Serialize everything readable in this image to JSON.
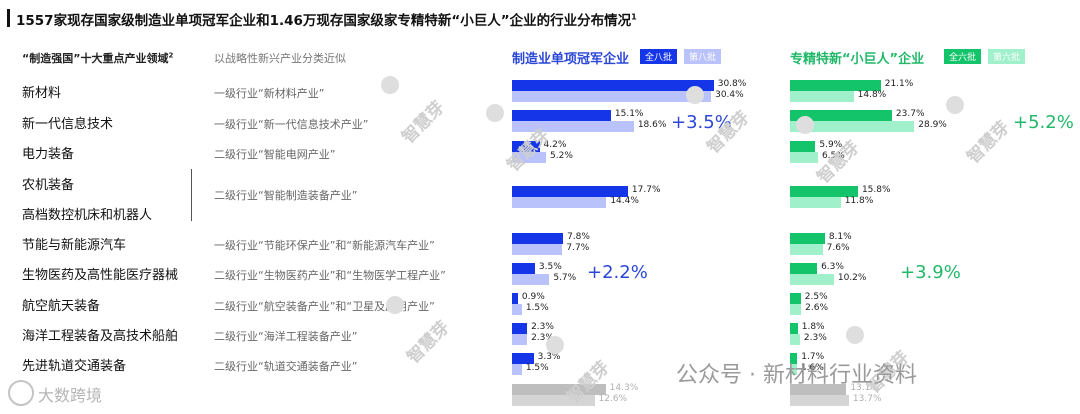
{
  "title": "1557家现存国家级制造业单项冠军企业和1.46万现存国家级家专精特新“小巨人”企业的行业分布情况",
  "title_sup": "1",
  "headers": {
    "left": "“制造强国”十大重点产业领域",
    "left_sup": "2",
    "middle": "以战略性新兴产业分类近似"
  },
  "rows": [
    {
      "name": "新材料",
      "cat": "一级行业“新材料产业”"
    },
    {
      "name": "新一代信息技术",
      "cat": "一级行业“新一代信息技术产业”"
    },
    {
      "name": "电力装备",
      "cat": "二级行业“智能电网产业”"
    },
    {
      "name": "农机装备",
      "cat": "二级行业“智能制造装备产业”"
    },
    {
      "name": "高档数控机床和机器人",
      "cat": ""
    },
    {
      "name": "节能与新能源汽车",
      "cat": "一级行业“节能环保产业”和“新能源汽车产业”"
    },
    {
      "name": "生物医药及高性能医疗器械",
      "cat": "二级行业“生物医药产业”和“生物医学工程产业”"
    },
    {
      "name": "航空航天装备",
      "cat": "二级行业“航空装备产业”和“卫星及应用产业”"
    },
    {
      "name": "海洋工程装备及高技术船舶",
      "cat": "二级行业“海洋工程装备产业”"
    },
    {
      "name": "先进轨道交通装备",
      "cat": "二级行业“轨道交通装备产业”"
    }
  ],
  "chart_data": [
    {
      "type": "bar",
      "title": "制造业单项冠军企业",
      "categories": [
        "新材料",
        "新一代信息技术",
        "电力装备",
        "农机装备/高档数控机床和机器人",
        "节能与新能源汽车",
        "生物医药及高性能医疗器械",
        "航空航天装备",
        "海洋工程装备及高技术船舶",
        "先进轨道交通装备",
        ""
      ],
      "series": [
        {
          "name": "全八批",
          "values": [
            30.8,
            15.1,
            4.2,
            17.7,
            7.8,
            3.5,
            0.9,
            2.3,
            3.3,
            14.3
          ]
        },
        {
          "name": "第八批",
          "values": [
            30.4,
            18.6,
            5.2,
            14.4,
            7.7,
            5.7,
            1.5,
            2.3,
            1.5,
            12.6
          ]
        }
      ],
      "annotations": [
        {
          "category": "新一代信息技术",
          "text": "+3.5%"
        },
        {
          "category": "生物医药及高性能医疗器械",
          "text": "+2.2%"
        }
      ],
      "colors": {
        "primary": "#1535e8",
        "secondary": "#b9c2fa",
        "accent": "#2a47d8"
      }
    },
    {
      "type": "bar",
      "title": "专精特新“小巨人”企业",
      "categories": [
        "新材料",
        "新一代信息技术",
        "电力装备",
        "农机装备/高档数控机床和机器人",
        "节能与新能源汽车",
        "生物医药及高性能医疗器械",
        "航空航天装备",
        "海洋工程装备及高技术船舶",
        "先进轨道交通装备",
        ""
      ],
      "series": [
        {
          "name": "全六批",
          "values": [
            21.1,
            23.7,
            5.9,
            15.8,
            8.1,
            6.3,
            2.5,
            1.8,
            1.7,
            13.1
          ]
        },
        {
          "name": "第六批",
          "values": [
            14.8,
            28.9,
            6.5,
            11.8,
            7.6,
            10.2,
            2.6,
            2.3,
            1.6,
            13.7
          ]
        }
      ],
      "annotations": [
        {
          "category": "新一代信息技术",
          "text": "+5.2%"
        },
        {
          "category": "生物医药及高性能医疗器械",
          "text": "+3.9%"
        }
      ],
      "colors": {
        "primary": "#14c46a",
        "secondary": "#9ff0cb",
        "accent": "#22b86a"
      }
    }
  ],
  "other_bar_color": "#b3b3b3",
  "watermark": "智慧芽",
  "footer_right": "公众号 · 新材料行业资料",
  "footer_left": "大数跨境"
}
